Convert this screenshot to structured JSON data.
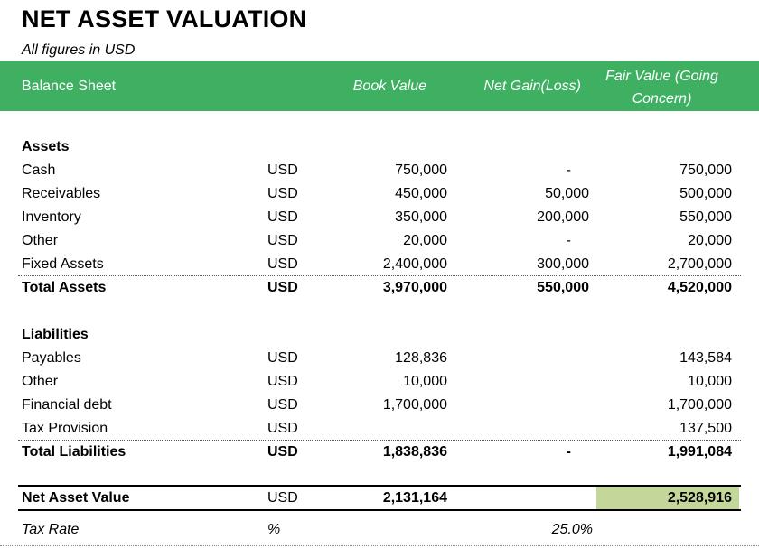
{
  "title": "NET ASSET VALUATION",
  "subtitle": "All figures in USD",
  "header": {
    "label": "Balance Sheet",
    "book_value": "Book Value",
    "net_gain": "Net Gain(Loss)",
    "fair_value_line1": "Fair Value (Going",
    "fair_value_line2": "Concern)"
  },
  "assets": {
    "heading": "Assets",
    "rows": [
      {
        "label": "Cash",
        "unit": "USD",
        "book": "750,000",
        "gain": "-",
        "fv": "750,000"
      },
      {
        "label": "Receivables",
        "unit": "USD",
        "book": "450,000",
        "gain": "50,000",
        "fv": "500,000"
      },
      {
        "label": "Inventory",
        "unit": "USD",
        "book": "350,000",
        "gain": "200,000",
        "fv": "550,000"
      },
      {
        "label": "Other",
        "unit": "USD",
        "book": "20,000",
        "gain": "-",
        "fv": "20,000"
      },
      {
        "label": "Fixed Assets",
        "unit": "USD",
        "book": "2,400,000",
        "gain": "300,000",
        "fv": "2,700,000"
      }
    ],
    "total": {
      "label": "Total Assets",
      "unit": "USD",
      "book": "3,970,000",
      "gain": "550,000",
      "fv": "4,520,000"
    }
  },
  "liabilities": {
    "heading": "Liabilities",
    "rows": [
      {
        "label": "Payables",
        "unit": "USD",
        "book": "128,836",
        "gain": "",
        "fv": "143,584"
      },
      {
        "label": "Other",
        "unit": "USD",
        "book": "10,000",
        "gain": "",
        "fv": "10,000"
      },
      {
        "label": "Financial debt",
        "unit": "USD",
        "book": "1,700,000",
        "gain": "",
        "fv": "1,700,000"
      },
      {
        "label": "Tax Provision",
        "unit": "USD",
        "book": "",
        "gain": "",
        "fv": "137,500"
      }
    ],
    "total": {
      "label": "Total Liabilities",
      "unit": "USD",
      "book": "1,838,836",
      "gain": "-",
      "fv": "1,991,084"
    }
  },
  "nav": {
    "label": "Net Asset Value",
    "unit": "USD",
    "book": "2,131,164",
    "gain": "",
    "fv": "2,528,916"
  },
  "tax_rate": {
    "label": "Tax Rate",
    "unit": "%",
    "gain": "25.0%"
  },
  "colors": {
    "header_green": "#3fb062",
    "highlight": "#c4d79b"
  }
}
